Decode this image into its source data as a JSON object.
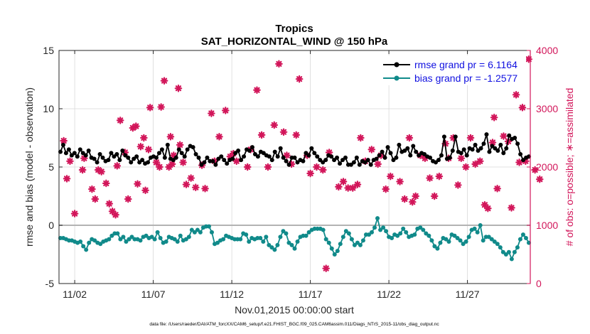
{
  "chart_data": {
    "type": "line",
    "title": "Tropics",
    "subtitle": "SAT_HORIZONTAL_WIND @ 150 hPa",
    "xlabel": "Nov.01,2015 00:00:00 start",
    "ylabel_left": "rmse and bias (model - observation)",
    "ylabel_right": "# of obs: o=possible; ∗=assimilated",
    "footnote": "data file: /Users/raeder/DAI/ATM_forcXX/CAM6_setup/f.e21.FHIST_BGC.f09_025.CAM6assim.011/Diags_NTrS_2015-11/obs_diag_output.nc",
    "x_range_days": [
      0.5,
      30.5
    ],
    "x_ticks": [
      {
        "day": 1.5,
        "label": "11/02"
      },
      {
        "day": 6.5,
        "label": "11/07"
      },
      {
        "day": 11.5,
        "label": "11/12"
      },
      {
        "day": 16.5,
        "label": "11/17"
      },
      {
        "day": 21.5,
        "label": "11/22"
      },
      {
        "day": 26.5,
        "label": "11/27"
      }
    ],
    "ylim_left": [
      -5,
      15
    ],
    "yticks_left": [
      "-5",
      "0",
      "5",
      "10",
      "15"
    ],
    "ylim_right": [
      0,
      4000
    ],
    "yticks_right": [
      "0",
      "1000",
      "2000",
      "3000",
      "4000"
    ],
    "grid": true,
    "legend_location": "top-right",
    "colors": {
      "rmse": "#000000",
      "bias": "#108a8a",
      "obs": "#d2165a",
      "legend_text": "#1010e0",
      "zero_line": "#b3b3b3",
      "grid": "#d9d9d9",
      "right_axis": "#d2165a"
    },
    "series": [
      {
        "name": "rmse grand pr = 6.1164",
        "axis": "left",
        "values": [
          6.3,
          6.9,
          6.2,
          6.5,
          6.0,
          6.2,
          5.9,
          6.5,
          6.2,
          6.0,
          6.4,
          5.8,
          5.7,
          5.4,
          6.1,
          5.8,
          5.5,
          5.6,
          6.2,
          5.9,
          6.1,
          5.6,
          6.4,
          6.0,
          5.8,
          5.4,
          5.7,
          5.9,
          5.4,
          5.6,
          5.3,
          5.4,
          5.8,
          5.9,
          5.8,
          6.2,
          6.5,
          5.8,
          6.9,
          5.7,
          5.6,
          5.8,
          6.5,
          6.2,
          5.9,
          6.5,
          6.8,
          6.7,
          6.1,
          5.8,
          5.2,
          5.4,
          5.8,
          5.5,
          5.5,
          5.2,
          5.7,
          5.9,
          5.6,
          5.3,
          5.6,
          5.7,
          6.2,
          6.4,
          5.6,
          5.9,
          6.5,
          6.4,
          6.7,
          6.1,
          5.9,
          6.3,
          6.2,
          6.0,
          5.9,
          5.6,
          6.3,
          5.9,
          6.6,
          5.8,
          5.5,
          5.2,
          5.8,
          5.8,
          5.4,
          5.6,
          5.5,
          6.2,
          6.0,
          6.6,
          6.2,
          5.9,
          5.6,
          5.4,
          5.6,
          6.0,
          5.9,
          5.6,
          5.8,
          5.3,
          5.6,
          5.8,
          5.2,
          5.2,
          5.4,
          5.8,
          5.2,
          5.5,
          5.4,
          5.6,
          5.2,
          5.6,
          5.7,
          6.0,
          6.3,
          5.8,
          6.7,
          6.2,
          5.6,
          5.8,
          6.9,
          6.3,
          6.4,
          6.6,
          6.0,
          6.8,
          6.3,
          6.0,
          6.2,
          6.1,
          5.9,
          5.8,
          5.5,
          5.4,
          5.6,
          6.0,
          7.6,
          5.7,
          5.8,
          6.4,
          7.6,
          6.3,
          6.2,
          6.5,
          6.0,
          6.6,
          6.5,
          6.9,
          6.4,
          6.6,
          7.0,
          7.8,
          6.3,
          6.8,
          6.6,
          6.4,
          6.9,
          6.2,
          6.6,
          7.7,
          7.4,
          7.5,
          7.0,
          6.1,
          5.6,
          5.8,
          5.9
        ]
      },
      {
        "name": "bias grand pr = -1.2577",
        "axis": "left",
        "values": [
          -1.1,
          -1.1,
          -1.2,
          -1.3,
          -1.3,
          -1.4,
          -1.5,
          -1.4,
          -1.8,
          -2.1,
          -1.5,
          -1.2,
          -1.3,
          -1.5,
          -1.6,
          -1.4,
          -1.3,
          -1.2,
          -0.9,
          -0.7,
          -0.7,
          -1.2,
          -1.0,
          -1.4,
          -1.2,
          -1.0,
          -1.2,
          -1.2,
          -1.3,
          -1.0,
          -0.9,
          -1.1,
          -1.0,
          -1.2,
          -0.6,
          -1.1,
          -1.5,
          -1.4,
          -1.0,
          -1.1,
          -1.2,
          -1.4,
          -0.9,
          -1.3,
          -1.2,
          -1.0,
          -0.4,
          -0.6,
          -0.4,
          -0.6,
          -0.2,
          -0.1,
          -0.1,
          -0.6,
          -1.6,
          -1.5,
          -1.3,
          -1.2,
          -0.9,
          -1.0,
          -1.1,
          -1.2,
          -1.2,
          -1.2,
          -0.7,
          -0.8,
          -1.4,
          -1.1,
          -1.2,
          -1.1,
          -1.1,
          -1.4,
          -1.0,
          -1.7,
          -1.9,
          -2.1,
          -1.7,
          -1.0,
          -0.5,
          -0.7,
          -1.5,
          -1.7,
          -2.0,
          -1.4,
          -1.0,
          -0.9,
          -0.9,
          -0.6,
          -0.4,
          -0.3,
          -0.3,
          -0.3,
          -0.4,
          -1.2,
          -1.5,
          -2.0,
          -2.5,
          -2.2,
          -1.6,
          -1.0,
          -0.5,
          -0.7,
          -1.2,
          -1.7,
          -1.5,
          -1.7,
          -1.3,
          -0.8,
          -0.8,
          -0.6,
          -0.2,
          0.6,
          -0.4,
          -0.2,
          -0.5,
          -1.0,
          -1.1,
          -0.8,
          -0.9,
          -0.7,
          -0.3,
          -0.6,
          -1.0,
          -0.9,
          -0.8,
          -0.3,
          -0.2,
          -0.4,
          -0.7,
          -0.9,
          -1.3,
          -1.8,
          -2.0,
          -1.5,
          -1.1,
          -1.2,
          -1.4,
          -0.8,
          -0.9,
          -1.1,
          -1.3,
          -1.6,
          -1.4,
          -1.0,
          -0.4,
          -0.3,
          -0.6,
          0.0,
          -1.3,
          -1.0,
          -1.0,
          -1.2,
          -1.4,
          -1.6,
          -1.9,
          -2.3,
          -2.5,
          -2.3,
          -2.9,
          -2.3,
          -1.9,
          -1.2,
          -0.8,
          -1.1,
          -1.5
        ]
      },
      {
        "name": "# of obs assimilated",
        "axis": "right",
        "marker": "star",
        "points": [
          [
            0.8,
            2450
          ],
          [
            1.0,
            1800
          ],
          [
            1.2,
            2100
          ],
          [
            1.5,
            1200
          ],
          [
            2.0,
            1950
          ],
          [
            2.1,
            2150
          ],
          [
            2.6,
            1620
          ],
          [
            2.8,
            1450
          ],
          [
            3.0,
            1950
          ],
          [
            3.2,
            1920
          ],
          [
            3.5,
            1720
          ],
          [
            3.7,
            1370
          ],
          [
            3.9,
            1240
          ],
          [
            4.1,
            1180
          ],
          [
            4.2,
            2020
          ],
          [
            4.4,
            2800
          ],
          [
            4.7,
            2250
          ],
          [
            4.9,
            1450
          ],
          [
            5.2,
            2670
          ],
          [
            5.4,
            2700
          ],
          [
            5.5,
            1710
          ],
          [
            5.7,
            2350
          ],
          [
            5.9,
            2500
          ],
          [
            6.0,
            1600
          ],
          [
            6.2,
            2300
          ],
          [
            6.3,
            3020
          ],
          [
            6.7,
            2080
          ],
          [
            6.9,
            2000
          ],
          [
            7.0,
            3030
          ],
          [
            7.2,
            3480
          ],
          [
            7.5,
            2000
          ],
          [
            7.6,
            2520
          ],
          [
            7.7,
            2050
          ],
          [
            7.8,
            2200
          ],
          [
            8.1,
            3350
          ],
          [
            8.2,
            2380
          ],
          [
            8.4,
            2080
          ],
          [
            8.6,
            1700
          ],
          [
            8.9,
            1810
          ],
          [
            9.2,
            1650
          ],
          [
            9.6,
            2030
          ],
          [
            9.8,
            1630
          ],
          [
            10.2,
            2920
          ],
          [
            10.4,
            2100
          ],
          [
            10.7,
            2520
          ],
          [
            11.1,
            2970
          ],
          [
            11.4,
            2180
          ],
          [
            11.6,
            2230
          ],
          [
            11.8,
            2100
          ],
          [
            12.5,
            2000
          ],
          [
            12.7,
            2300
          ],
          [
            13.1,
            3320
          ],
          [
            13.4,
            2550
          ],
          [
            13.8,
            2000
          ],
          [
            14.2,
            2720
          ],
          [
            14.5,
            3770
          ],
          [
            14.8,
            2600
          ],
          [
            15.0,
            2200
          ],
          [
            15.3,
            2050
          ],
          [
            15.6,
            2550
          ],
          [
            15.8,
            3510
          ],
          [
            16.3,
            2200
          ],
          [
            16.5,
            1890
          ],
          [
            16.9,
            2000
          ],
          [
            17.3,
            1950
          ],
          [
            17.5,
            260
          ],
          [
            17.7,
            2250
          ],
          [
            18.3,
            1660
          ],
          [
            18.6,
            1750
          ],
          [
            18.9,
            1640
          ],
          [
            19.2,
            1640
          ],
          [
            19.5,
            1700
          ],
          [
            19.7,
            2500
          ],
          [
            20.0,
            2100
          ],
          [
            20.4,
            2300
          ],
          [
            20.8,
            2050
          ],
          [
            21.0,
            2200
          ],
          [
            21.3,
            1620
          ],
          [
            21.6,
            1840
          ],
          [
            22.2,
            1750
          ],
          [
            22.5,
            1450
          ],
          [
            22.8,
            2500
          ],
          [
            23.0,
            1400
          ],
          [
            23.2,
            1500
          ],
          [
            23.5,
            2200
          ],
          [
            23.8,
            2150
          ],
          [
            24.1,
            1810
          ],
          [
            24.4,
            1500
          ],
          [
            24.7,
            1840
          ],
          [
            25.1,
            2400
          ],
          [
            25.3,
            2150
          ],
          [
            25.6,
            2500
          ],
          [
            25.9,
            1690
          ],
          [
            26.1,
            2150
          ],
          [
            26.4,
            2000
          ],
          [
            26.7,
            2500
          ],
          [
            27.0,
            2050
          ],
          [
            27.3,
            2100
          ],
          [
            27.6,
            1350
          ],
          [
            27.8,
            1290
          ],
          [
            28.1,
            2420
          ],
          [
            28.2,
            2850
          ],
          [
            28.4,
            1630
          ],
          [
            28.8,
            2530
          ],
          [
            29.1,
            2440
          ],
          [
            29.3,
            1300
          ],
          [
            29.6,
            3240
          ],
          [
            29.8,
            2080
          ],
          [
            30.0,
            3020
          ],
          [
            30.2,
            2100
          ],
          [
            30.4,
            3850
          ],
          [
            30.8,
            1950
          ],
          [
            31.1,
            1790
          ]
        ]
      }
    ]
  }
}
